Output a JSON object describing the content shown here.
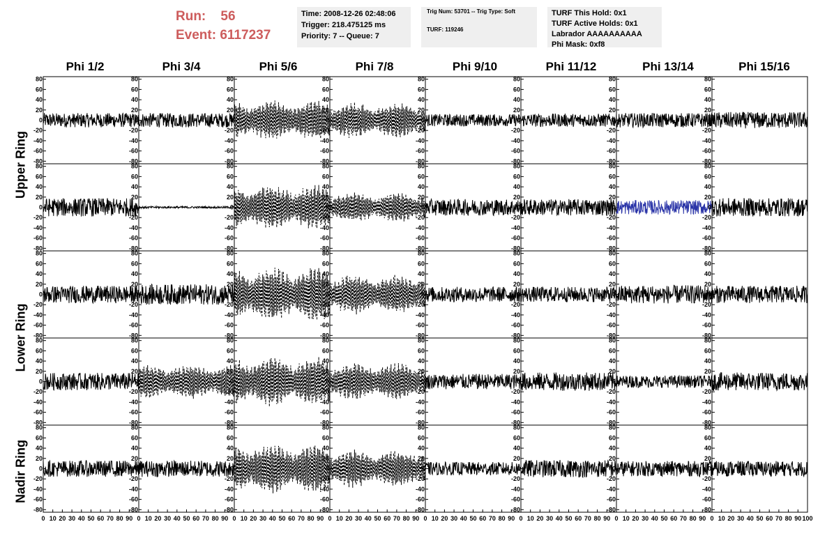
{
  "run_info": {
    "run_label": "Run:",
    "run_value": "56",
    "event_label": "Event:",
    "event_value": "6117237",
    "color": "#cd5c5c"
  },
  "info_box_1": {
    "time": "Time: 2008-12-26 02:48:06",
    "trigger": "Trigger: 218.475125 ms",
    "priority": "Priority: 7 -- Queue: 7"
  },
  "info_box_2": {
    "trig": "Trig Num: 53701 -- Trig Type: Soft",
    "turf": "TURF: 119246"
  },
  "info_box_3": {
    "hold": "TURF This Hold: 0x1",
    "active": "TURF Active Holds: 0x1",
    "labrador": "Labrador AAAAAAAAAA",
    "phimask": "Phi Mask: 0xf8"
  },
  "phi_labels": [
    "Phi 1/2",
    "Phi 3/4",
    "Phi 5/6",
    "Phi 7/8",
    "Phi 9/10",
    "Phi 11/12",
    "Phi 13/14",
    "Phi 15/16"
  ],
  "ring_labels": [
    "Upper Ring",
    "Lower Ring",
    "Nadir Ring"
  ],
  "chart_data": {
    "type": "line",
    "title": "",
    "xlabel": "",
    "ylabel": "",
    "xlim": [
      0,
      100
    ],
    "ylim": [
      -85,
      85
    ],
    "y_ticks": [
      -80,
      -60,
      -40,
      -20,
      0,
      20,
      40,
      60,
      80
    ],
    "x_ticks": [
      0,
      10,
      20,
      30,
      40,
      50,
      60,
      70,
      80,
      90,
      100
    ],
    "colors": {
      "default": "#000000",
      "highlight": "#2b35a8"
    },
    "rows": 5,
    "cols": 8,
    "panels_note_row_order": [
      "upper-1",
      "upper-2",
      "lower-1",
      "lower-2",
      "nadir"
    ],
    "panels": [
      [
        {
          "amplitude": 14,
          "style": "solid",
          "color": "default"
        },
        {
          "amplitude": 14,
          "style": "solid",
          "color": "default"
        },
        {
          "amplitude": 40,
          "style": "dashed",
          "color": "default",
          "envelope": true
        },
        {
          "amplitude": 36,
          "style": "dashed",
          "color": "default",
          "envelope": true
        },
        {
          "amplitude": 12,
          "style": "solid",
          "color": "default"
        },
        {
          "amplitude": 13,
          "style": "solid",
          "color": "default"
        },
        {
          "amplitude": 14,
          "style": "solid",
          "color": "default"
        },
        {
          "amplitude": 16,
          "style": "solid",
          "color": "default"
        }
      ],
      [
        {
          "amplitude": 18,
          "style": "solid",
          "color": "default"
        },
        {
          "amplitude": 2,
          "style": "solid",
          "color": "default"
        },
        {
          "amplitude": 45,
          "style": "dashed",
          "color": "default",
          "envelope": true
        },
        {
          "amplitude": 30,
          "style": "dashed",
          "color": "default",
          "envelope": true
        },
        {
          "amplitude": 16,
          "style": "solid",
          "color": "default"
        },
        {
          "amplitude": 16,
          "style": "solid",
          "color": "default"
        },
        {
          "amplitude": 14,
          "style": "solid",
          "color": "highlight"
        },
        {
          "amplitude": 18,
          "style": "solid",
          "color": "default"
        }
      ],
      [
        {
          "amplitude": 17,
          "style": "solid",
          "color": "default"
        },
        {
          "amplitude": 20,
          "style": "solid",
          "color": "default"
        },
        {
          "amplitude": 55,
          "style": "dashed",
          "color": "default",
          "envelope": true
        },
        {
          "amplitude": 40,
          "style": "dashed",
          "color": "default",
          "envelope": true
        },
        {
          "amplitude": 15,
          "style": "solid",
          "color": "default"
        },
        {
          "amplitude": 15,
          "style": "solid",
          "color": "default"
        },
        {
          "amplitude": 18,
          "style": "solid",
          "color": "default"
        },
        {
          "amplitude": 17,
          "style": "solid",
          "color": "default"
        }
      ],
      [
        {
          "amplitude": 17,
          "style": "solid",
          "color": "default"
        },
        {
          "amplitude": 35,
          "style": "dashed",
          "color": "default",
          "envelope": true
        },
        {
          "amplitude": 50,
          "style": "dashed",
          "color": "default",
          "envelope": true
        },
        {
          "amplitude": 38,
          "style": "dashed",
          "color": "default",
          "envelope": true
        },
        {
          "amplitude": 15,
          "style": "solid",
          "color": "default"
        },
        {
          "amplitude": 18,
          "style": "solid",
          "color": "default"
        },
        {
          "amplitude": 12,
          "style": "solid",
          "color": "default"
        },
        {
          "amplitude": 18,
          "style": "solid",
          "color": "default"
        }
      ],
      [
        {
          "amplitude": 16,
          "style": "solid",
          "color": "default"
        },
        {
          "amplitude": 16,
          "style": "solid",
          "color": "default"
        },
        {
          "amplitude": 50,
          "style": "dashed",
          "color": "default",
          "envelope": true
        },
        {
          "amplitude": 38,
          "style": "dashed",
          "color": "default",
          "envelope": true
        },
        {
          "amplitude": 13,
          "style": "solid",
          "color": "default"
        },
        {
          "amplitude": 17,
          "style": "solid",
          "color": "default"
        },
        {
          "amplitude": 15,
          "style": "solid",
          "color": "default"
        },
        {
          "amplitude": 15,
          "style": "solid",
          "color": "default"
        }
      ]
    ]
  }
}
